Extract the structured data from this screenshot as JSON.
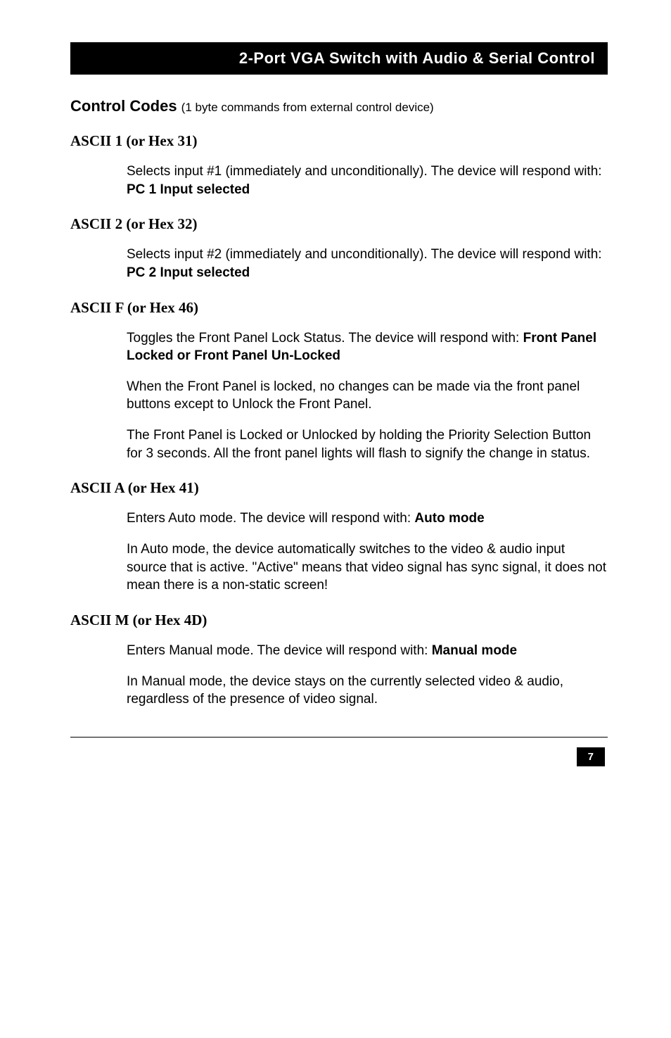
{
  "header": {
    "title": "2-Port VGA Switch with Audio & Serial Control"
  },
  "mainHeading": {
    "title": "Control Codes ",
    "note": "(1 byte commands from external control device)"
  },
  "sections": [
    {
      "heading": "ASCII 1 (or Hex 31)",
      "paragraphs": [
        {
          "pre": "Selects input #1 (immediately and unconditionally).  The device will respond with: ",
          "bold": "PC 1 Input selected",
          "post": ""
        }
      ]
    },
    {
      "heading": "ASCII 2 (or Hex 32)",
      "paragraphs": [
        {
          "pre": "Selects input #2 (immediately and unconditionally). The device will respond with: ",
          "bold": "PC 2 Input selected",
          "post": ""
        }
      ]
    },
    {
      "heading": "ASCII F (or Hex 46)",
      "paragraphs": [
        {
          "pre": "Toggles the Front Panel Lock Status.  The device will respond with: ",
          "bold": "Front Panel Locked or Front Panel Un-Locked",
          "post": ""
        },
        {
          "pre": "When the Front Panel is locked, no changes can be made via the front panel buttons except to Unlock the Front Panel.",
          "bold": "",
          "post": ""
        },
        {
          "pre": "The Front Panel is Locked or Unlocked by holding the Priority Selection Button for 3 seconds. All the front panel lights will flash to signify the change in status.",
          "bold": "",
          "post": ""
        }
      ]
    },
    {
      "heading": "ASCII A (or Hex 41)",
      "paragraphs": [
        {
          "pre": "Enters Auto mode.  The device will respond with: ",
          "bold": "Auto mode",
          "post": ""
        },
        {
          "pre": "In Auto mode, the device automatically switches to the video & audio input source that is active.  \"Active\" means that video signal has sync signal, it does not mean there is a non-static screen!",
          "bold": "",
          "post": ""
        }
      ]
    },
    {
      "heading": "ASCII M (or Hex 4D)",
      "paragraphs": [
        {
          "pre": "Enters Manual mode.  The device will respond with: ",
          "bold": "Manual mode",
          "post": ""
        },
        {
          "pre": "In Manual mode, the device stays on the currently selected video & audio, regardless of the presence of video signal.",
          "bold": "",
          "post": ""
        }
      ]
    }
  ],
  "pageNumber": "7"
}
